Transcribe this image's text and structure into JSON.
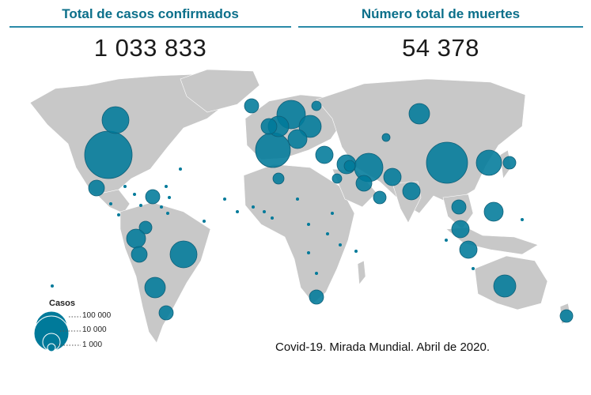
{
  "stats": {
    "cases_label": "Total de casos confirmados",
    "cases_value": "1 033 833",
    "deaths_label": "Número total de muertes",
    "deaths_value": "54 378"
  },
  "legend": {
    "title": "Casos",
    "labels": [
      "100 000",
      "10 000",
      "1 000"
    ]
  },
  "caption": "Covid-19. Mirada Mundial. Abril de 2020.",
  "colors": {
    "land": "#c8c8c8",
    "bubble": "#007a9a",
    "bubble_stroke": "#0f5f78",
    "accent": "#0b6f8a"
  }
}
